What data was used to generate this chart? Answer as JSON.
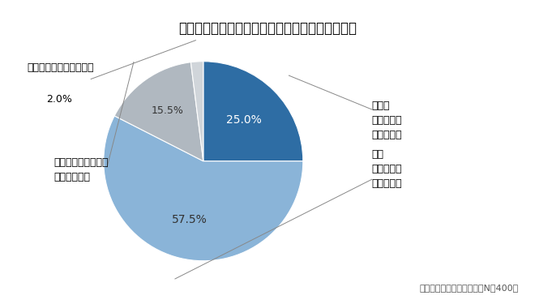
{
  "title": "勤務先でどの程度、ストレスを感じていますか。",
  "footnote": "マンパワーグループ調べ（N＝400）",
  "slices": [
    25.0,
    57.5,
    15.5,
    2.0
  ],
  "colors": [
    "#2E6DA4",
    "#8AB4D8",
    "#B0B8C0",
    "#D0D5DA"
  ],
  "pct_labels": [
    "25.0%",
    "57.5%",
    "15.5%",
    "2.0%"
  ],
  "startangle": 90,
  "background_color": "#FFFFFF",
  "title_fontsize": 12,
  "label_fontsize": 9,
  "pct_fontsize": 10,
  "footnote_fontsize": 8,
  "right_labels": [
    {
      "text": "非常に\nストレスを\n感じている",
      "wedge_idx": 0
    },
    {
      "text": "やや\nストレスを\n感じている",
      "wedge_idx": 1
    }
  ],
  "left_labels": [
    {
      "text": "ほとんどストレスを\n感じていない",
      "wedge_idx": 2
    },
    {
      "text": "ストレスを感じていない",
      "pct": "2.0%",
      "wedge_idx": 3
    }
  ]
}
